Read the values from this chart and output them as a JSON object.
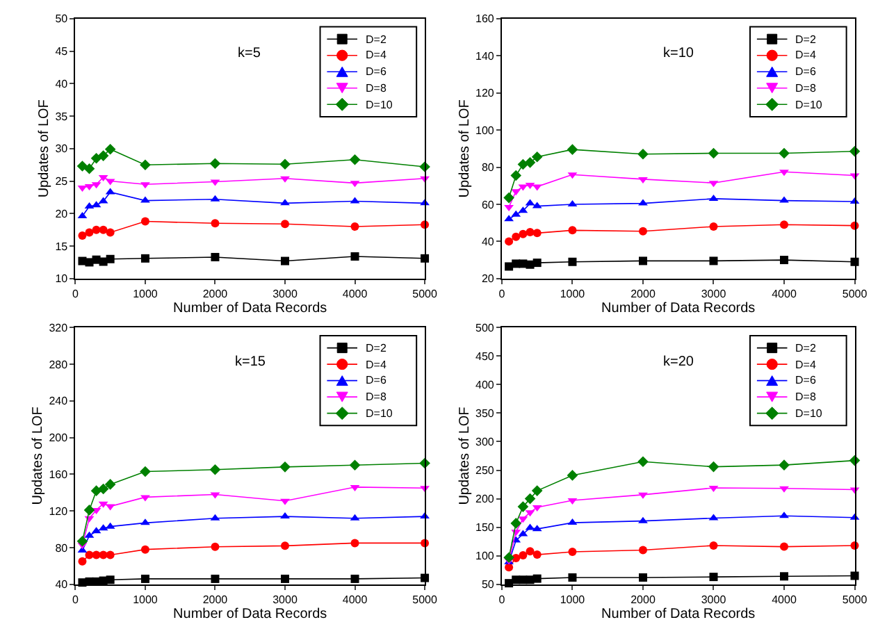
{
  "chart_data": [
    {
      "type": "line",
      "title": "k=5",
      "xlabel": "Number of Data Records",
      "ylabel": "Updates of LOF",
      "x": [
        100,
        200,
        300,
        400,
        500,
        1000,
        2000,
        3000,
        4000,
        5000
      ],
      "xlim": [
        0,
        5000
      ],
      "xticks": [
        0,
        1000,
        2000,
        3000,
        4000,
        5000
      ],
      "ylim": [
        10,
        50
      ],
      "yticks": [
        10,
        15,
        20,
        25,
        30,
        35,
        40,
        45,
        50
      ],
      "legend": "top right",
      "series": [
        {
          "name": "D=2",
          "color": "#000000",
          "marker": "square",
          "values": [
            12.7,
            12.5,
            12.9,
            12.6,
            13.0,
            13.1,
            13.3,
            12.7,
            13.4,
            13.1
          ]
        },
        {
          "name": "D=4",
          "color": "#ff0000",
          "marker": "circle",
          "values": [
            16.6,
            17.1,
            17.5,
            17.5,
            17.1,
            18.8,
            18.5,
            18.4,
            18.0,
            18.3
          ]
        },
        {
          "name": "D=6",
          "color": "#0000ff",
          "marker": "triangle",
          "values": [
            19.6,
            21.1,
            21.3,
            21.9,
            23.3,
            22.0,
            22.2,
            21.6,
            21.9,
            21.6
          ]
        },
        {
          "name": "D=8",
          "color": "#ff00ff",
          "marker": "triangle-down",
          "values": [
            24.0,
            24.2,
            24.5,
            25.6,
            25.0,
            24.5,
            24.9,
            25.4,
            24.7,
            25.4
          ]
        },
        {
          "name": "D=10",
          "color": "#008000",
          "marker": "diamond",
          "values": [
            27.3,
            26.9,
            28.5,
            28.9,
            29.9,
            27.5,
            27.7,
            27.6,
            28.3,
            27.2
          ]
        }
      ]
    },
    {
      "type": "line",
      "title": "k=10",
      "xlabel": "Number of Data Records",
      "ylabel": "Updates of LOF",
      "x": [
        100,
        200,
        300,
        400,
        500,
        1000,
        2000,
        3000,
        4000,
        5000
      ],
      "xlim": [
        0,
        5000
      ],
      "xticks": [
        0,
        1000,
        2000,
        3000,
        4000,
        5000
      ],
      "ylim": [
        20,
        160
      ],
      "yticks": [
        20,
        40,
        60,
        80,
        100,
        120,
        140,
        160
      ],
      "legend": "top right",
      "series": [
        {
          "name": "D=2",
          "color": "#000000",
          "marker": "square",
          "values": [
            26.5,
            28,
            28,
            27.5,
            28.5,
            29,
            29.5,
            29.5,
            30,
            29
          ]
        },
        {
          "name": "D=4",
          "color": "#ff0000",
          "marker": "circle",
          "values": [
            40,
            42.5,
            44,
            45,
            44.5,
            46,
            45.5,
            48,
            49,
            48.5
          ]
        },
        {
          "name": "D=6",
          "color": "#0000ff",
          "marker": "triangle",
          "values": [
            52,
            54.5,
            56.5,
            60.5,
            59,
            60,
            60.5,
            63,
            62,
            61.5
          ]
        },
        {
          "name": "D=8",
          "color": "#ff00ff",
          "marker": "triangle-down",
          "values": [
            58.5,
            67,
            69.5,
            70.5,
            69.5,
            76,
            73.5,
            71.5,
            77.5,
            75.5
          ]
        },
        {
          "name": "D=10",
          "color": "#008000",
          "marker": "diamond",
          "values": [
            63.5,
            75.5,
            81.5,
            82.5,
            85.5,
            89.5,
            87,
            87.5,
            87.5,
            88.5
          ]
        }
      ]
    },
    {
      "type": "line",
      "title": "k=15",
      "xlabel": "Number of Data Records",
      "ylabel": "Updates of LOF",
      "x": [
        100,
        200,
        300,
        400,
        500,
        1000,
        2000,
        3000,
        4000,
        5000
      ],
      "xlim": [
        0,
        5000
      ],
      "xticks": [
        0,
        1000,
        2000,
        3000,
        4000,
        5000
      ],
      "ylim": [
        40,
        320
      ],
      "yticks": [
        40,
        80,
        120,
        160,
        200,
        240,
        280,
        320
      ],
      "legend": "top right",
      "series": [
        {
          "name": "D=2",
          "color": "#000000",
          "marker": "square",
          "values": [
            42,
            43,
            43,
            44,
            45,
            46,
            46,
            46,
            46,
            47
          ]
        },
        {
          "name": "D=4",
          "color": "#ff0000",
          "marker": "circle",
          "values": [
            65,
            72,
            72,
            72,
            72,
            78,
            81,
            82,
            85,
            85
          ]
        },
        {
          "name": "D=6",
          "color": "#0000ff",
          "marker": "triangle",
          "values": [
            77,
            93,
            98,
            101,
            103,
            107,
            112,
            114,
            112,
            114
          ]
        },
        {
          "name": "D=8",
          "color": "#ff00ff",
          "marker": "triangle-down",
          "values": [
            83,
            112,
            121,
            128,
            125,
            135,
            138,
            131,
            146,
            145
          ]
        },
        {
          "name": "D=10",
          "color": "#008000",
          "marker": "diamond",
          "values": [
            87,
            121,
            142,
            144,
            149,
            163,
            165,
            168,
            170,
            172
          ]
        }
      ]
    },
    {
      "type": "line",
      "title": "k=20",
      "xlabel": "Number of Data Records",
      "ylabel": "Updates of LOF",
      "x": [
        100,
        200,
        300,
        400,
        500,
        1000,
        2000,
        3000,
        4000,
        5000
      ],
      "xlim": [
        0,
        5000
      ],
      "xticks": [
        0,
        1000,
        2000,
        3000,
        4000,
        5000
      ],
      "ylim": [
        50,
        500
      ],
      "yticks": [
        50,
        100,
        150,
        200,
        250,
        300,
        350,
        400,
        450,
        500
      ],
      "legend": "top right",
      "series": [
        {
          "name": "D=2",
          "color": "#000000",
          "marker": "square",
          "values": [
            52,
            58,
            58,
            58,
            60,
            62,
            62,
            63,
            64,
            65
          ]
        },
        {
          "name": "D=4",
          "color": "#ff0000",
          "marker": "circle",
          "values": [
            80,
            96,
            101,
            108,
            102,
            107,
            110,
            118,
            116,
            118
          ]
        },
        {
          "name": "D=6",
          "color": "#0000ff",
          "marker": "triangle",
          "values": [
            89,
            127,
            138,
            149,
            147,
            158,
            161,
            166,
            170,
            167
          ]
        },
        {
          "name": "D=8",
          "color": "#ff00ff",
          "marker": "triangle-down",
          "values": [
            92,
            142,
            165,
            176,
            185,
            197,
            207,
            219,
            218,
            216
          ]
        },
        {
          "name": "D=10",
          "color": "#008000",
          "marker": "diamond",
          "values": [
            97,
            157,
            186,
            200,
            214,
            241,
            265,
            256,
            259,
            267
          ]
        }
      ]
    }
  ]
}
